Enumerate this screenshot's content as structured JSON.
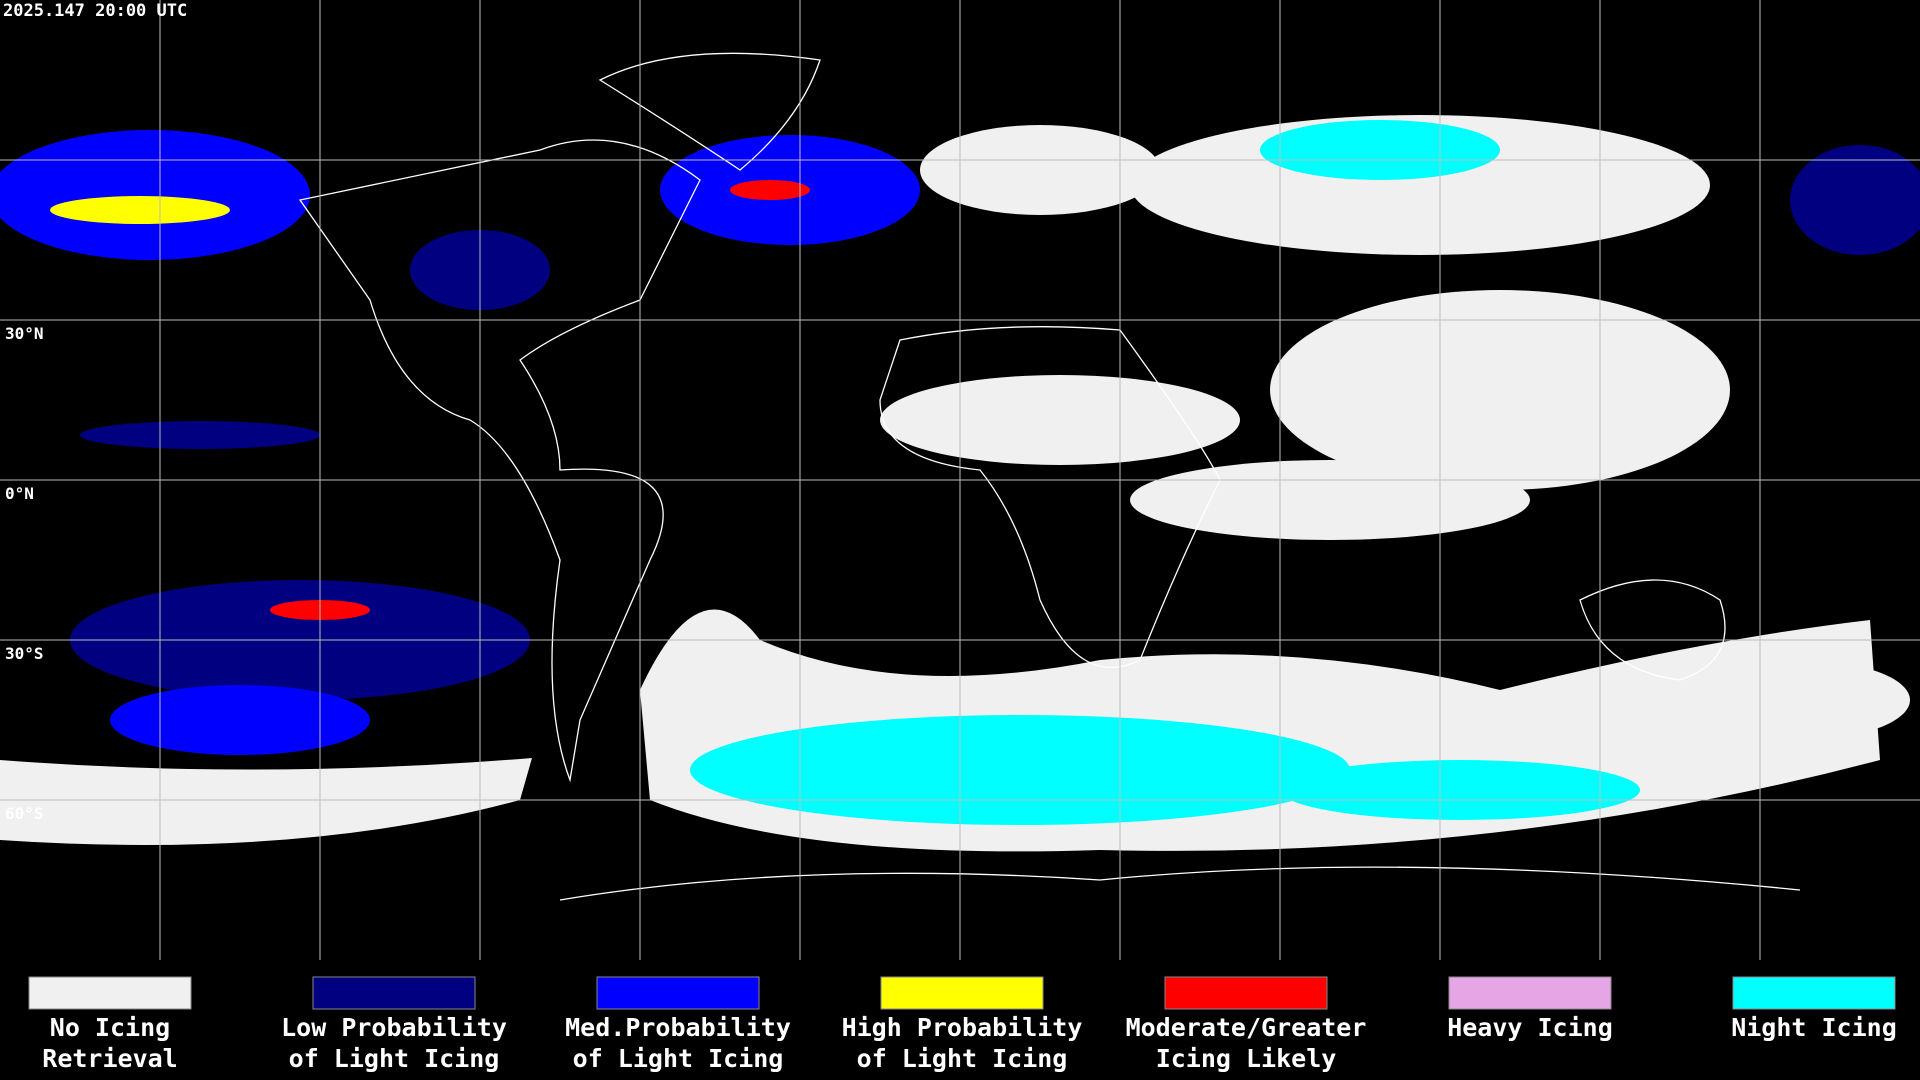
{
  "header": {
    "timestamp": "2025.147 20:00 UTC"
  },
  "map": {
    "latitude_labels": [
      "30°N",
      "0°N",
      "30°S",
      "60°S"
    ]
  },
  "legend": {
    "items": [
      {
        "lines": [
          "No Icing",
          "Retrieval"
        ],
        "color": "#f0f0f0"
      },
      {
        "lines": [
          "Low Probability",
          "of Light Icing"
        ],
        "color": "#000080"
      },
      {
        "lines": [
          "Med.Probability",
          "of Light Icing"
        ],
        "color": "#0000ff"
      },
      {
        "lines": [
          "High Probability",
          "of Light Icing"
        ],
        "color": "#ffff00"
      },
      {
        "lines": [
          "Moderate/Greater",
          "Icing Likely"
        ],
        "color": "#ff0000"
      },
      {
        "lines": [
          "Heavy Icing",
          ""
        ],
        "color": "#e6a6e6"
      },
      {
        "lines": [
          "Night Icing",
          ""
        ],
        "color": "#00ffff"
      }
    ]
  }
}
